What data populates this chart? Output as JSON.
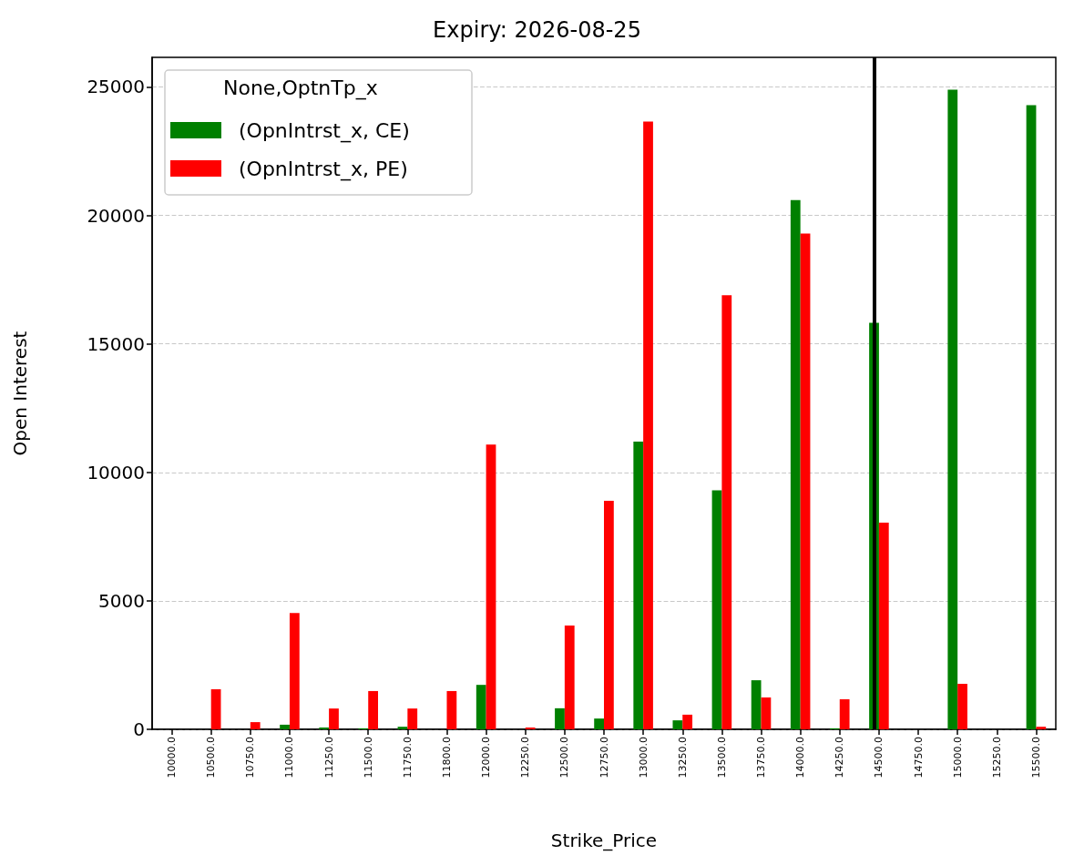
{
  "chart_data": {
    "type": "bar",
    "title": "Expiry: 2026-08-25",
    "xlabel": "Strike_Price",
    "ylabel": "Open Interest",
    "legend_title": "None,OptnTp_x",
    "categories": [
      "10000.0",
      "10500.0",
      "10750.0",
      "11000.0",
      "11250.0",
      "11500.0",
      "11750.0",
      "11800.0",
      "12000.0",
      "12250.0",
      "12500.0",
      "12750.0",
      "13000.0",
      "13250.0",
      "13500.0",
      "13750.0",
      "14000.0",
      "14250.0",
      "14500.0",
      "14750.0",
      "15000.0",
      "15250.0",
      "15500.0"
    ],
    "series": [
      {
        "name": "(OpnIntrst_x, CE)",
        "color": "#008000",
        "values": [
          0,
          0,
          0,
          180,
          70,
          40,
          100,
          0,
          1730,
          0,
          820,
          420,
          11200,
          350,
          9300,
          1910,
          20600,
          40,
          15820,
          0,
          24890,
          0,
          24290
        ]
      },
      {
        "name": "(OpnIntrst_x, PE)",
        "color": "#ff0000",
        "values": [
          0,
          1560,
          280,
          4530,
          810,
          1490,
          810,
          1490,
          11080,
          70,
          4040,
          8890,
          23650,
          570,
          16890,
          1240,
          19290,
          1170,
          8040,
          0,
          1770,
          0,
          100
        ]
      }
    ],
    "ylim": [
      0,
      26150
    ],
    "yticks": [
      0,
      5000,
      10000,
      15000,
      20000,
      25000
    ],
    "grid": "y",
    "legend": "top left",
    "ref_lines": [
      {
        "axis": "x",
        "value": "14500.0",
        "color": "#000000"
      }
    ]
  }
}
